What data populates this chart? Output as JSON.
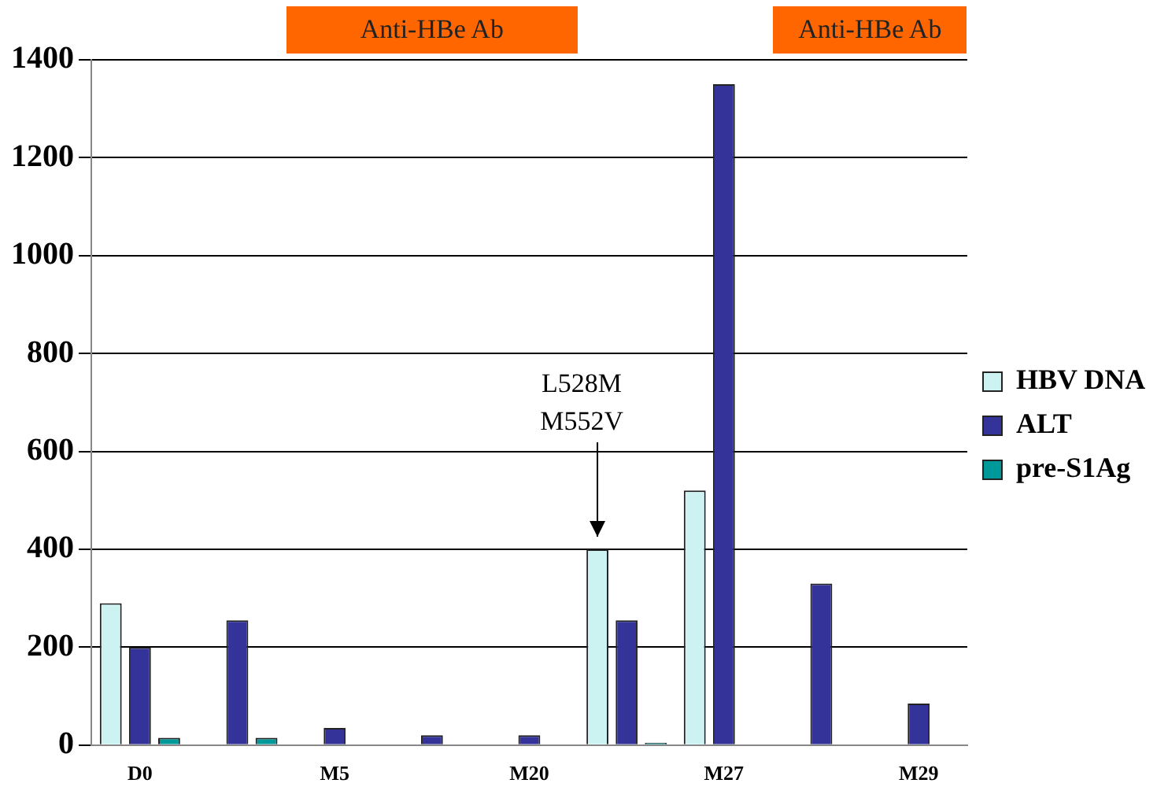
{
  "chart_data": {
    "type": "bar",
    "categories": [
      "D0",
      null,
      "M5",
      null,
      "M20",
      null,
      "M27",
      null,
      "M29"
    ],
    "series": [
      {
        "name": "HBV DNA",
        "color": "#ccf2f2",
        "values": [
          290,
          0,
          0,
          0,
          0,
          400,
          520,
          0,
          0
        ]
      },
      {
        "name": "ALT",
        "color": "#333399",
        "values": [
          200,
          255,
          35,
          20,
          20,
          255,
          1350,
          330,
          85
        ]
      },
      {
        "name": "pre-S1Ag",
        "color": "#009999",
        "values": [
          15,
          15,
          null,
          null,
          null,
          5,
          0,
          0,
          0
        ]
      }
    ],
    "ylim": [
      0,
      1400
    ],
    "yticks": [
      0,
      200,
      400,
      600,
      800,
      1000,
      1200,
      1400
    ],
    "grid": "y",
    "legend": "right",
    "annotations": [
      "Anti-HBe Ab",
      "Anti-HBe Ab",
      "L528M\nM552V"
    ]
  }
}
